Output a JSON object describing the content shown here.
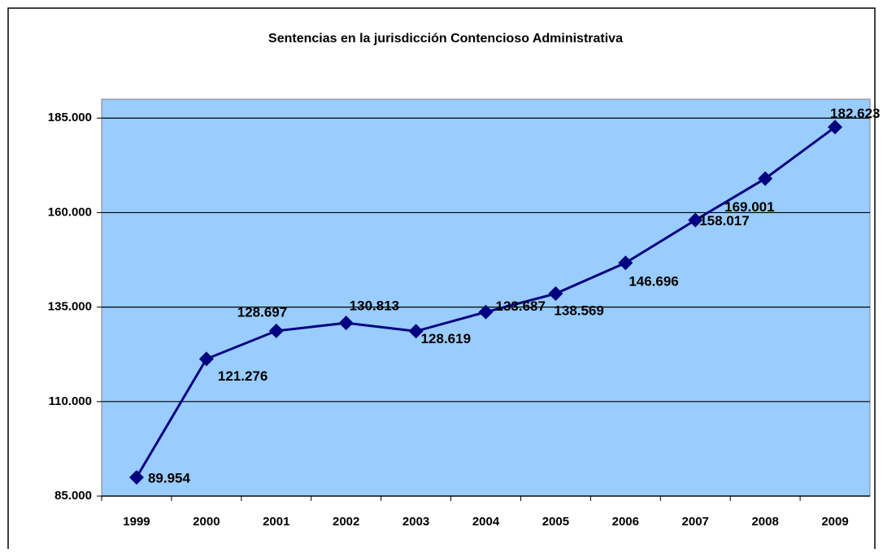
{
  "chart_data": {
    "type": "line",
    "title": "Sentencias en la jurisdicción Contencioso Administrativa",
    "categories": [
      "1999",
      "2000",
      "2001",
      "2002",
      "2003",
      "2004",
      "2005",
      "2006",
      "2007",
      "2008",
      "2009"
    ],
    "values": [
      89954,
      121276,
      128697,
      130813,
      128619,
      133687,
      138569,
      146696,
      158017,
      169001,
      182623
    ],
    "value_labels": [
      "89.954",
      "121.276",
      "128.697",
      "130.813",
      "128.619",
      "133.687",
      "138.569",
      "146.696",
      "158.017",
      "169.001",
      "182.623"
    ],
    "color": "#000080",
    "background": "#99ccff",
    "ylim": [
      85000,
      190000
    ],
    "yticks": [
      {
        "value": 85000,
        "label": "85.000"
      },
      {
        "value": 110000,
        "label": "110.000"
      },
      {
        "value": 135000,
        "label": "135.000"
      },
      {
        "value": 160000,
        "label": "160.000"
      },
      {
        "value": 185000,
        "label": "185.000"
      }
    ],
    "grid": true
  }
}
